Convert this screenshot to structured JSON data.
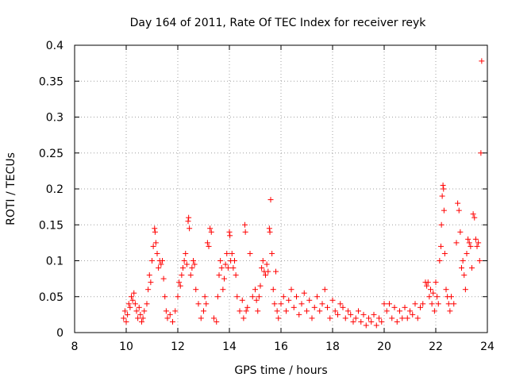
{
  "chart_data": {
    "type": "scatter",
    "title": "Day 164 of 2011, Rate Of TEC Index for receiver reyk",
    "xlabel": "GPS time / hours",
    "ylabel": "ROTI / TECUs",
    "xlim": [
      8,
      24
    ],
    "ylim": [
      0,
      0.4
    ],
    "x_ticks": [
      "8",
      "10",
      "12",
      "14",
      "16",
      "18",
      "20",
      "22",
      "24"
    ],
    "y_ticks": [
      "0",
      "0.05",
      "0.1",
      "0.15",
      "0.2",
      "0.25",
      "0.3",
      "0.35",
      "0.4"
    ],
    "grid": true,
    "marker": "+",
    "color": "#ff0000",
    "series": [
      {
        "name": "ROTI",
        "points": [
          [
            9.9,
            0.02
          ],
          [
            9.95,
            0.03
          ],
          [
            10.0,
            0.015
          ],
          [
            10.05,
            0.025
          ],
          [
            10.1,
            0.04
          ],
          [
            10.15,
            0.035
          ],
          [
            10.2,
            0.05
          ],
          [
            10.25,
            0.045
          ],
          [
            10.3,
            0.055
          ],
          [
            10.35,
            0.04
          ],
          [
            10.4,
            0.03
          ],
          [
            10.45,
            0.02
          ],
          [
            10.5,
            0.035
          ],
          [
            10.55,
            0.025
          ],
          [
            10.6,
            0.015
          ],
          [
            10.65,
            0.02
          ],
          [
            10.7,
            0.03
          ],
          [
            10.8,
            0.04
          ],
          [
            10.85,
            0.06
          ],
          [
            10.9,
            0.08
          ],
          [
            10.95,
            0.07
          ],
          [
            11.0,
            0.1
          ],
          [
            11.05,
            0.12
          ],
          [
            11.1,
            0.145
          ],
          [
            11.12,
            0.14
          ],
          [
            11.15,
            0.125
          ],
          [
            11.2,
            0.11
          ],
          [
            11.25,
            0.09
          ],
          [
            11.3,
            0.1
          ],
          [
            11.35,
            0.095
          ],
          [
            11.4,
            0.1
          ],
          [
            11.45,
            0.075
          ],
          [
            11.5,
            0.05
          ],
          [
            11.55,
            0.03
          ],
          [
            11.6,
            0.02
          ],
          [
            11.7,
            0.025
          ],
          [
            11.8,
            0.015
          ],
          [
            11.9,
            0.03
          ],
          [
            12.0,
            0.05
          ],
          [
            12.05,
            0.07
          ],
          [
            12.1,
            0.065
          ],
          [
            12.15,
            0.08
          ],
          [
            12.2,
            0.09
          ],
          [
            12.25,
            0.1
          ],
          [
            12.3,
            0.11
          ],
          [
            12.35,
            0.095
          ],
          [
            12.4,
            0.155
          ],
          [
            12.42,
            0.16
          ],
          [
            12.45,
            0.145
          ],
          [
            12.5,
            0.08
          ],
          [
            12.55,
            0.09
          ],
          [
            12.6,
            0.1
          ],
          [
            12.65,
            0.095
          ],
          [
            12.7,
            0.06
          ],
          [
            12.8,
            0.04
          ],
          [
            12.9,
            0.02
          ],
          [
            13.0,
            0.03
          ],
          [
            13.05,
            0.05
          ],
          [
            13.1,
            0.04
          ],
          [
            13.15,
            0.125
          ],
          [
            13.2,
            0.12
          ],
          [
            13.25,
            0.145
          ],
          [
            13.3,
            0.14
          ],
          [
            13.4,
            0.02
          ],
          [
            13.5,
            0.015
          ],
          [
            13.55,
            0.05
          ],
          [
            13.6,
            0.08
          ],
          [
            13.65,
            0.1
          ],
          [
            13.7,
            0.09
          ],
          [
            13.75,
            0.06
          ],
          [
            13.8,
            0.075
          ],
          [
            13.85,
            0.095
          ],
          [
            13.9,
            0.11
          ],
          [
            13.95,
            0.09
          ],
          [
            14.0,
            0.14
          ],
          [
            14.02,
            0.135
          ],
          [
            14.05,
            0.1
          ],
          [
            14.1,
            0.11
          ],
          [
            14.15,
            0.09
          ],
          [
            14.2,
            0.1
          ],
          [
            14.25,
            0.08
          ],
          [
            14.3,
            0.05
          ],
          [
            14.4,
            0.03
          ],
          [
            14.5,
            0.045
          ],
          [
            14.55,
            0.02
          ],
          [
            14.6,
            0.15
          ],
          [
            14.62,
            0.14
          ],
          [
            14.65,
            0.03
          ],
          [
            14.7,
            0.035
          ],
          [
            14.8,
            0.11
          ],
          [
            14.9,
            0.05
          ],
          [
            15.0,
            0.06
          ],
          [
            15.05,
            0.045
          ],
          [
            15.1,
            0.03
          ],
          [
            15.15,
            0.05
          ],
          [
            15.2,
            0.065
          ],
          [
            15.25,
            0.09
          ],
          [
            15.3,
            0.1
          ],
          [
            15.35,
            0.085
          ],
          [
            15.4,
            0.08
          ],
          [
            15.45,
            0.095
          ],
          [
            15.5,
            0.085
          ],
          [
            15.55,
            0.145
          ],
          [
            15.57,
            0.14
          ],
          [
            15.6,
            0.185
          ],
          [
            15.65,
            0.11
          ],
          [
            15.7,
            0.06
          ],
          [
            15.75,
            0.04
          ],
          [
            15.8,
            0.085
          ],
          [
            15.85,
            0.03
          ],
          [
            15.9,
            0.02
          ],
          [
            16.0,
            0.04
          ],
          [
            16.1,
            0.05
          ],
          [
            16.2,
            0.03
          ],
          [
            16.3,
            0.045
          ],
          [
            16.4,
            0.06
          ],
          [
            16.5,
            0.035
          ],
          [
            16.6,
            0.05
          ],
          [
            16.7,
            0.025
          ],
          [
            16.8,
            0.04
          ],
          [
            16.9,
            0.055
          ],
          [
            17.0,
            0.03
          ],
          [
            17.1,
            0.045
          ],
          [
            17.2,
            0.02
          ],
          [
            17.3,
            0.035
          ],
          [
            17.4,
            0.05
          ],
          [
            17.5,
            0.03
          ],
          [
            17.6,
            0.04
          ],
          [
            17.7,
            0.06
          ],
          [
            17.8,
            0.035
          ],
          [
            17.9,
            0.02
          ],
          [
            18.0,
            0.045
          ],
          [
            18.1,
            0.03
          ],
          [
            18.2,
            0.025
          ],
          [
            18.3,
            0.04
          ],
          [
            18.4,
            0.035
          ],
          [
            18.5,
            0.02
          ],
          [
            18.6,
            0.03
          ],
          [
            18.7,
            0.025
          ],
          [
            18.8,
            0.015
          ],
          [
            18.9,
            0.02
          ],
          [
            19.0,
            0.03
          ],
          [
            19.1,
            0.015
          ],
          [
            19.2,
            0.025
          ],
          [
            19.3,
            0.01
          ],
          [
            19.4,
            0.02
          ],
          [
            19.5,
            0.015
          ],
          [
            19.6,
            0.025
          ],
          [
            19.7,
            0.01
          ],
          [
            19.8,
            0.02
          ],
          [
            19.9,
            0.015
          ],
          [
            20.0,
            0.04
          ],
          [
            20.1,
            0.03
          ],
          [
            20.2,
            0.04
          ],
          [
            20.3,
            0.02
          ],
          [
            20.4,
            0.035
          ],
          [
            20.5,
            0.015
          ],
          [
            20.6,
            0.03
          ],
          [
            20.7,
            0.02
          ],
          [
            20.8,
            0.035
          ],
          [
            20.9,
            0.02
          ],
          [
            21.0,
            0.03
          ],
          [
            21.1,
            0.025
          ],
          [
            21.2,
            0.04
          ],
          [
            21.3,
            0.02
          ],
          [
            21.4,
            0.035
          ],
          [
            21.5,
            0.04
          ],
          [
            21.6,
            0.07
          ],
          [
            21.65,
            0.065
          ],
          [
            21.7,
            0.07
          ],
          [
            21.75,
            0.05
          ],
          [
            21.8,
            0.06
          ],
          [
            21.85,
            0.04
          ],
          [
            21.9,
            0.055
          ],
          [
            21.95,
            0.03
          ],
          [
            22.0,
            0.07
          ],
          [
            22.05,
            0.05
          ],
          [
            22.1,
            0.04
          ],
          [
            22.15,
            0.1
          ],
          [
            22.2,
            0.12
          ],
          [
            22.22,
            0.15
          ],
          [
            22.25,
            0.19
          ],
          [
            22.28,
            0.205
          ],
          [
            22.3,
            0.2
          ],
          [
            22.32,
            0.17
          ],
          [
            22.35,
            0.11
          ],
          [
            22.4,
            0.06
          ],
          [
            22.45,
            0.05
          ],
          [
            22.5,
            0.04
          ],
          [
            22.55,
            0.03
          ],
          [
            22.6,
            0.05
          ],
          [
            22.7,
            0.04
          ],
          [
            22.8,
            0.125
          ],
          [
            22.85,
            0.18
          ],
          [
            22.9,
            0.17
          ],
          [
            22.95,
            0.14
          ],
          [
            23.0,
            0.09
          ],
          [
            23.05,
            0.1
          ],
          [
            23.1,
            0.08
          ],
          [
            23.15,
            0.06
          ],
          [
            23.2,
            0.11
          ],
          [
            23.25,
            0.13
          ],
          [
            23.3,
            0.125
          ],
          [
            23.35,
            0.12
          ],
          [
            23.4,
            0.09
          ],
          [
            23.45,
            0.165
          ],
          [
            23.5,
            0.16
          ],
          [
            23.55,
            0.13
          ],
          [
            23.6,
            0.12
          ],
          [
            23.65,
            0.125
          ],
          [
            23.7,
            0.1
          ],
          [
            23.75,
            0.25
          ],
          [
            23.78,
            0.378
          ]
        ]
      }
    ]
  }
}
